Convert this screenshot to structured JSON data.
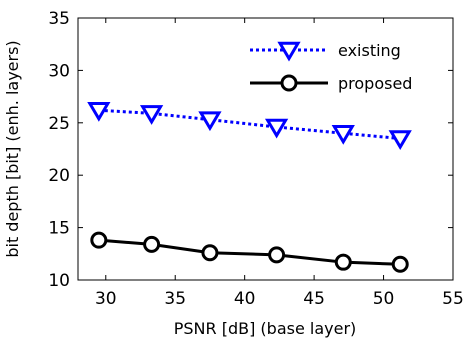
{
  "chart_data": {
    "type": "line",
    "xlabel": "PSNR [dB] (base layer)",
    "ylabel": "bit depth [bit] (enh. layers)",
    "xlim": [
      28,
      55
    ],
    "ylim": [
      10,
      35
    ],
    "xticks": [
      "30",
      "35",
      "40",
      "45",
      "50",
      "55"
    ],
    "yticks": [
      "10",
      "15",
      "20",
      "25",
      "30",
      "35"
    ],
    "grid": false,
    "legend_position": "top-right",
    "series": [
      {
        "name": "existing",
        "color": "#0000ff",
        "line_style": "dotted",
        "marker": "triangle-down",
        "x": [
          29.5,
          33.3,
          37.5,
          42.3,
          47.1,
          51.2
        ],
        "y": [
          26.2,
          25.9,
          25.3,
          24.6,
          24.0,
          23.5
        ]
      },
      {
        "name": "proposed",
        "color": "#000000",
        "line_style": "solid",
        "marker": "circle",
        "x": [
          29.5,
          33.3,
          37.5,
          42.3,
          47.1,
          51.2
        ],
        "y": [
          13.8,
          13.4,
          12.6,
          12.4,
          11.7,
          11.5
        ]
      }
    ]
  }
}
